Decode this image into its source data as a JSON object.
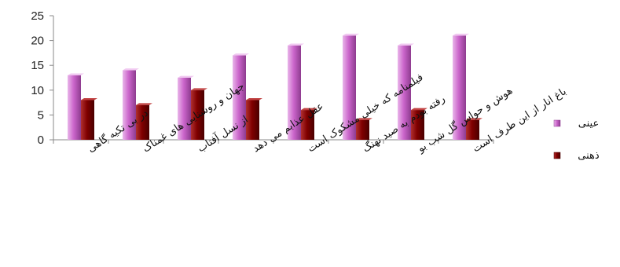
{
  "chart_data": {
    "type": "bar",
    "categories": [
      "در بی تکیه گاهی",
      "جهان و روشنایی های غمناک",
      "از نسل آفتاب",
      "عقل عذابم می دهد",
      "فیلمنامه که خیلی مشکوک است",
      "رفته بودم به صید نهنگ",
      "هوش و حواس گل شب بو",
      "باغ انار از این طرف است"
    ],
    "series": [
      {
        "name": "عینی",
        "values": [
          13,
          14,
          12.5,
          17,
          19,
          21,
          19,
          21
        ],
        "color": "#cc66cc"
      },
      {
        "name": "ذهنی",
        "values": [
          8,
          7,
          10,
          8,
          6,
          4,
          6,
          4
        ],
        "color": "#800000"
      }
    ],
    "ylim": [
      0,
      25
    ],
    "yticks": [
      0,
      5,
      10,
      15,
      20,
      25
    ],
    "grid": false,
    "legend": "right"
  }
}
